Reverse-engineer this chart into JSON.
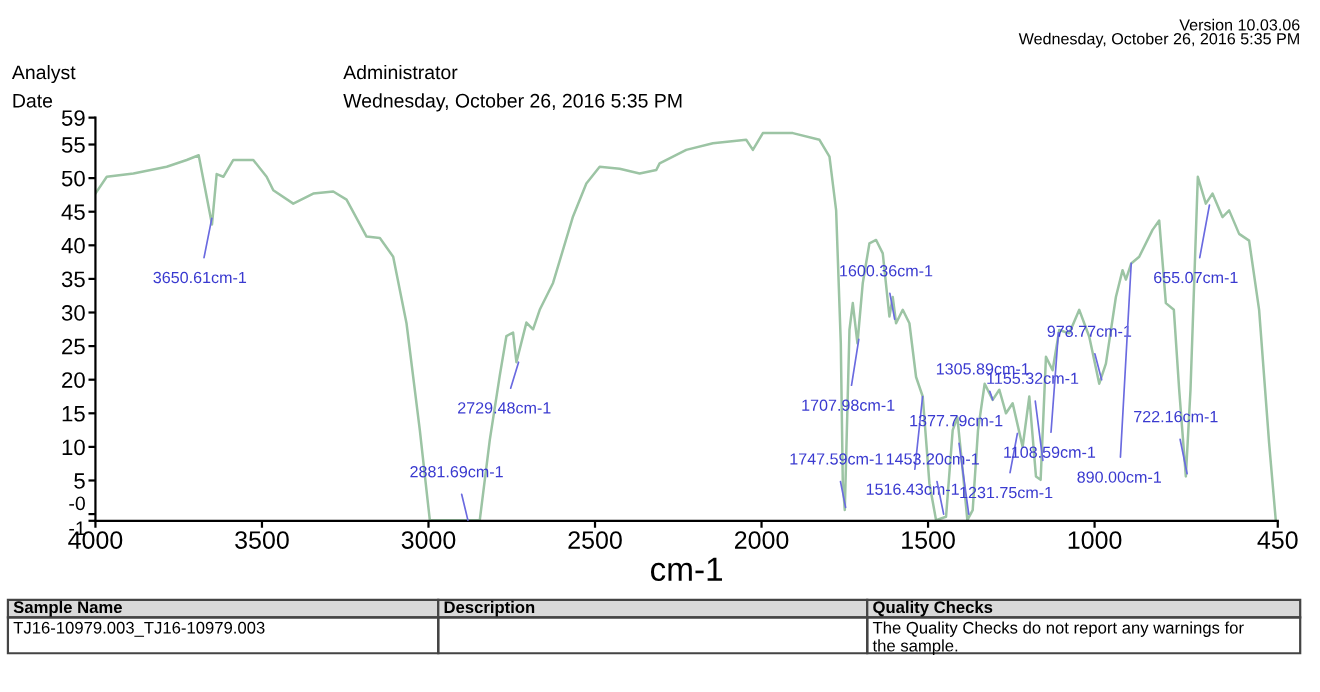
{
  "chart_data": {
    "type": "line",
    "xlabel": "cm-1",
    "xlim": [
      4000,
      450
    ],
    "xticks": [
      4000,
      3500,
      3000,
      2500,
      2000,
      1500,
      1000,
      450
    ],
    "ylim": [
      -1,
      59
    ],
    "yticks": [
      {
        "value": -1,
        "label": "-1"
      },
      {
        "value": 0,
        "label": "-0"
      },
      5,
      10,
      15,
      20,
      25,
      30,
      35,
      40,
      45,
      50,
      55,
      59
    ],
    "grid": false,
    "legend": false,
    "marker": "none",
    "line_style": "solid",
    "series": [
      {
        "color": "#9cc4a4",
        "x": [
          4000,
          3966,
          3886,
          3786,
          3726,
          3690,
          3650,
          3636,
          3616,
          3586,
          3526,
          3486,
          3466,
          3406,
          3346,
          3286,
          3246,
          3186,
          3146,
          3106,
          3066,
          3026,
          2996,
          2846,
          2816,
          2786,
          2766,
          2746,
          2736,
          2706,
          2686,
          2666,
          2626,
          2566,
          2526,
          2486,
          2426,
          2366,
          2316,
          2306,
          2226,
          2146,
          2046,
          2026,
          1996,
          1906,
          1826,
          1796,
          1776,
          1762,
          1756,
          1750,
          1736,
          1726,
          1712,
          1696,
          1676,
          1656,
          1636,
          1616,
          1606,
          1596,
          1576,
          1556,
          1536,
          1516,
          1496,
          1476,
          1446,
          1426,
          1412,
          1396,
          1382,
          1366,
          1350,
          1330,
          1306,
          1286,
          1266,
          1246,
          1216,
          1196,
          1176,
          1162,
          1146,
          1126,
          1106,
          1076,
          1046,
          1016,
          986,
          966,
          936,
          916,
          906,
          890,
          866,
          826,
          806,
          786,
          762,
          746,
          726,
          712,
          690,
          666,
          646,
          616,
          596,
          566,
          536,
          506,
          476,
          456
        ],
        "values": [
          47.7,
          50.2,
          50.7,
          51.7,
          52.7,
          53.4,
          43.1,
          50.6,
          50.2,
          52.7,
          52.7,
          50.2,
          48.2,
          46.2,
          47.7,
          48.0,
          46.8,
          41.3,
          41.1,
          38.3,
          28.4,
          12.5,
          -0.9,
          -0.9,
          11.0,
          20.6,
          26.5,
          27.0,
          22.6,
          28.5,
          27.5,
          30.4,
          34.4,
          44.3,
          49.2,
          51.7,
          51.4,
          50.7,
          51.2,
          52.2,
          54.2,
          55.2,
          55.7,
          54.2,
          56.7,
          56.7,
          55.7,
          53.2,
          45.2,
          25.4,
          4.6,
          0.6,
          27.4,
          31.4,
          25.4,
          34.4,
          40.3,
          40.8,
          38.8,
          29.4,
          32.3,
          28.4,
          30.4,
          28.4,
          20.4,
          17.5,
          4.6,
          -0.9,
          -0.4,
          12.5,
          14.4,
          6.5,
          -0.9,
          0.6,
          12.5,
          19.4,
          17.0,
          18.5,
          15.0,
          16.5,
          10.0,
          17.5,
          5.6,
          5.1,
          23.4,
          21.4,
          27.4,
          26.9,
          30.4,
          26.4,
          19.4,
          22.4,
          32.3,
          36.3,
          34.9,
          37.3,
          38.3,
          42.3,
          43.7,
          31.4,
          30.4,
          18.5,
          5.6,
          18.5,
          50.2,
          46.2,
          47.7,
          44.2,
          45.2,
          41.7,
          40.7,
          30.4,
          10.6,
          -0.9
        ]
      }
    ],
    "annotations": [
      "Version 10.03.06",
      "Wednesday, October 26, 2016 5:35 PM",
      "Analyst",
      "Administrator",
      "Date",
      "Wednesday, October 26, 2016 5:35 PM",
      "Sample Name",
      "Description",
      "Quality Checks",
      "TJ16-10979.003_TJ16-10979.003",
      "The Quality Checks do not report any warnings for the sample.",
      {
        "text": "3650.61cm-1",
        "x": 3650.61,
        "y": 44
      },
      {
        "text": "2881.69cm-1",
        "x": 2881.69,
        "y": -0.9
      },
      {
        "text": "2729.48cm-1",
        "x": 2729.48,
        "y": 22.6
      },
      {
        "text": "1747.59cm-1",
        "x": 1747.59,
        "y": 1
      },
      {
        "text": "1707.98cm-1",
        "x": 1707.98,
        "y": 26
      },
      {
        "text": "1600.36cm-1",
        "x": 1600.36,
        "y": 29
      },
      {
        "text": "1516.43cm-1",
        "x": 1516.43,
        "y": 17.5
      },
      {
        "text": "1453.20cm-1",
        "x": 1453.2,
        "y": 0
      },
      {
        "text": "1377.79cm-1",
        "x": 1377.79,
        "y": 0
      },
      {
        "text": "1305.89cm-1",
        "x": 1305.89,
        "y": 17
      },
      {
        "text": "1231.75cm-1",
        "x": 1231.75,
        "y": 12
      },
      {
        "text": "1155.32cm-1",
        "x": 1155.32,
        "y": 8
      },
      {
        "text": "1108.59cm-1",
        "x": 1108.59,
        "y": 27
      },
      {
        "text": "978.77cm-1",
        "x": 978.77,
        "y": 20
      },
      {
        "text": "890.00cm-1",
        "x": 890.0,
        "y": 37.3
      },
      {
        "text": "722.16cm-1",
        "x": 722.16,
        "y": 6
      },
      {
        "text": "655.07cm-1",
        "x": 655.07,
        "y": 46
      }
    ]
  }
}
